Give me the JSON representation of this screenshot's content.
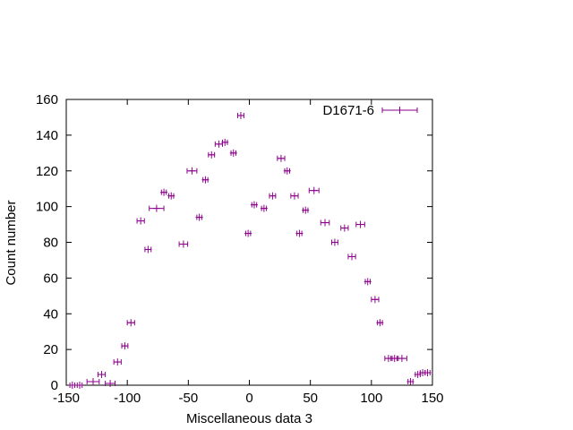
{
  "chart_data": {
    "type": "scatter",
    "title": "",
    "xlabel": "Miscellaneous data 3",
    "ylabel": "Count number",
    "xlim": [
      -150,
      150
    ],
    "ylim": [
      0,
      160
    ],
    "xticks": [
      -150,
      -100,
      -50,
      0,
      50,
      100,
      150
    ],
    "yticks": [
      0,
      20,
      40,
      60,
      80,
      100,
      120,
      140,
      160
    ],
    "xtick_labels": [
      "-150",
      "-100",
      "-50",
      "0",
      "50",
      "100",
      "150"
    ],
    "ytick_labels": [
      "0",
      "20",
      "40",
      "60",
      "80",
      "100",
      "120",
      "140",
      "160"
    ],
    "grid": false,
    "legend_position": "top-right",
    "color": "#8b008b",
    "series": [
      {
        "name": "D1671-6",
        "points": [
          {
            "x": -145,
            "y": 0,
            "xerr": 2
          },
          {
            "x": -139,
            "y": 0,
            "xerr": 2
          },
          {
            "x": -128,
            "y": 2,
            "xerr": 5
          },
          {
            "x": -121,
            "y": 6,
            "xerr": 3
          },
          {
            "x": -114,
            "y": 1,
            "xerr": 4
          },
          {
            "x": -108,
            "y": 13,
            "xerr": 3
          },
          {
            "x": -102,
            "y": 22,
            "xerr": 2.5
          },
          {
            "x": -97,
            "y": 35,
            "xerr": 3
          },
          {
            "x": -89,
            "y": 92,
            "xerr": 3
          },
          {
            "x": -83,
            "y": 76,
            "xerr": 2.5
          },
          {
            "x": -76,
            "y": 99,
            "xerr": 6
          },
          {
            "x": -70,
            "y": 108,
            "xerr": 2
          },
          {
            "x": -64,
            "y": 106,
            "xerr": 2
          },
          {
            "x": -54,
            "y": 79,
            "xerr": 3.5
          },
          {
            "x": -47,
            "y": 120,
            "xerr": 4
          },
          {
            "x": -41,
            "y": 94,
            "xerr": 2
          },
          {
            "x": -36,
            "y": 115,
            "xerr": 2
          },
          {
            "x": -31,
            "y": 129,
            "xerr": 2.5
          },
          {
            "x": -25,
            "y": 135,
            "xerr": 3
          },
          {
            "x": -20,
            "y": 136,
            "xerr": 2
          },
          {
            "x": -13,
            "y": 130,
            "xerr": 2
          },
          {
            "x": -7,
            "y": 151,
            "xerr": 2.5
          },
          {
            "x": -1,
            "y": 85,
            "xerr": 2
          },
          {
            "x": 4,
            "y": 101,
            "xerr": 2
          },
          {
            "x": 12,
            "y": 99,
            "xerr": 2
          },
          {
            "x": 19,
            "y": 106,
            "xerr": 2.5
          },
          {
            "x": 26,
            "y": 127,
            "xerr": 3
          },
          {
            "x": 31,
            "y": 120,
            "xerr": 2
          },
          {
            "x": 37,
            "y": 106,
            "xerr": 3
          },
          {
            "x": 41,
            "y": 85,
            "xerr": 2
          },
          {
            "x": 46,
            "y": 98,
            "xerr": 2
          },
          {
            "x": 53,
            "y": 109,
            "xerr": 4
          },
          {
            "x": 62,
            "y": 91,
            "xerr": 3.5
          },
          {
            "x": 70,
            "y": 80,
            "xerr": 2.5
          },
          {
            "x": 78,
            "y": 88,
            "xerr": 3
          },
          {
            "x": 84,
            "y": 72,
            "xerr": 3
          },
          {
            "x": 91,
            "y": 90,
            "xerr": 3.5
          },
          {
            "x": 97,
            "y": 58,
            "xerr": 2
          },
          {
            "x": 103,
            "y": 48,
            "xerr": 3
          },
          {
            "x": 107,
            "y": 35,
            "xerr": 2
          },
          {
            "x": 114,
            "y": 15,
            "xerr": 3
          },
          {
            "x": 119,
            "y": 15,
            "xerr": 3
          },
          {
            "x": 125,
            "y": 15,
            "xerr": 4
          },
          {
            "x": 132,
            "y": 2,
            "xerr": 2
          },
          {
            "x": 138,
            "y": 6,
            "xerr": 2
          },
          {
            "x": 142,
            "y": 7,
            "xerr": 2
          },
          {
            "x": 146,
            "y": 7,
            "xerr": 2
          }
        ]
      }
    ]
  }
}
